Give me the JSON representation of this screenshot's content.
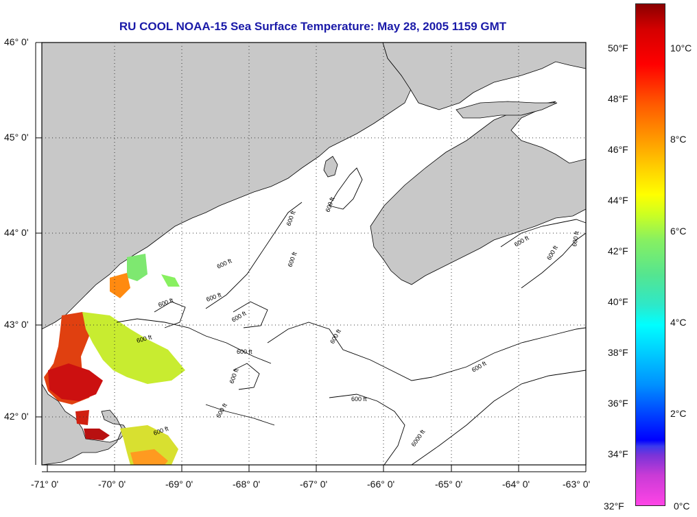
{
  "title": "RU COOL  NOAA-15  Sea Surface Temperature:  May 28, 2005 1159 GMT",
  "map": {
    "lat_labels": [
      "46° 0'",
      "45° 0'",
      "44° 0'",
      "43° 0'",
      "42° 0'"
    ],
    "lon_labels": [
      "-71° 0'",
      "-70° 0'",
      "-69° 0'",
      "-68° 0'",
      "-67° 0'",
      "-66° 0'",
      "-65° 0'",
      "-64° 0'",
      "-63° 0'"
    ],
    "lat_range": [
      41.5,
      46.0
    ],
    "lon_range": [
      -71.0,
      -63.0
    ],
    "land_color": "#c8c8c8",
    "ocean_color": "#ffffff",
    "grid": "dotted",
    "contour_labels": [
      "600 ft",
      "6000 ft"
    ]
  },
  "colorbar": {
    "fahrenheit_labels": [
      "50°F",
      "48°F",
      "46°F",
      "44°F",
      "42°F",
      "40°F",
      "38°F",
      "36°F",
      "34°F",
      "32°F"
    ],
    "celsius_labels": [
      "10°C",
      "8°C",
      "6°C",
      "4°C",
      "2°C",
      "0°C"
    ],
    "colors": [
      "#8a0000",
      "#ff0000",
      "#ff9a00",
      "#ffff00",
      "#88f060",
      "#00ffff",
      "#0090ff",
      "#0000ff",
      "#ff44e6"
    ]
  }
}
